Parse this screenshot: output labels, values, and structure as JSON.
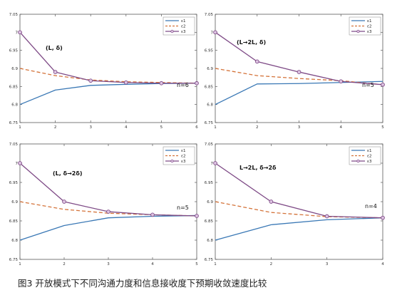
{
  "caption": "图3 开放模式下不同沟通力度和信息接收度下预期收敛速度比较",
  "colors": {
    "e1": "#3a78b5",
    "e2": "#d4733a",
    "e3": "#7e4a86",
    "e3_marker_fill": "#ddc4e2"
  },
  "chart_data": [
    {
      "type": "line",
      "annotation": "(L,  δ)",
      "n_label": "n=6",
      "x": [
        1,
        2,
        3,
        4,
        5,
        6
      ],
      "xticks": [
        "1",
        "2",
        "3",
        "4",
        "5",
        "6"
      ],
      "ylim": [
        6.75,
        7.05
      ],
      "yticks": [
        "6.75",
        "6.8",
        "6.85",
        "6.9",
        "6.95",
        "7",
        "7.05"
      ],
      "legend": "top-right",
      "series": [
        {
          "name": "ε1",
          "values": [
            6.8,
            6.84,
            6.853,
            6.856,
            6.858,
            6.859
          ]
        },
        {
          "name": "ε2",
          "values": [
            6.9,
            6.88,
            6.868,
            6.863,
            6.861,
            6.859
          ]
        },
        {
          "name": "ε3",
          "values": [
            7.0,
            6.89,
            6.866,
            6.861,
            6.859,
            6.859
          ]
        }
      ]
    },
    {
      "type": "line",
      "annotation": "(L→2L,  δ)",
      "n_label": "n=5",
      "x": [
        1,
        2,
        3,
        4,
        5
      ],
      "xticks": [
        "1",
        "2",
        "3",
        "4",
        "5"
      ],
      "ylim": [
        6.75,
        7.05
      ],
      "yticks": [
        "6.75",
        "6.8",
        "6.85",
        "6.9",
        "6.95",
        "7",
        "7.05"
      ],
      "legend": "top-right",
      "series": [
        {
          "name": "ε1",
          "values": [
            6.8,
            6.857,
            6.858,
            6.861,
            6.864
          ]
        },
        {
          "name": "ε2",
          "values": [
            6.9,
            6.88,
            6.872,
            6.866,
            6.855
          ]
        },
        {
          "name": "ε3",
          "values": [
            7.0,
            6.919,
            6.89,
            6.864,
            6.855
          ]
        }
      ]
    },
    {
      "type": "line",
      "annotation": "(L,  δ→2δ)",
      "n_label": "n=5",
      "x": [
        1,
        2,
        3,
        4,
        5
      ],
      "xticks": [
        "1",
        "2",
        "3",
        "4",
        "5"
      ],
      "ylim": [
        6.75,
        7.05
      ],
      "yticks": [
        "6.75",
        "6.8",
        "6.85",
        "6.9",
        "6.95",
        "7",
        "7.05"
      ],
      "legend": "top-right",
      "series": [
        {
          "name": "ε1",
          "values": [
            6.8,
            6.838,
            6.858,
            6.862,
            6.864
          ]
        },
        {
          "name": "ε2",
          "values": [
            6.9,
            6.88,
            6.87,
            6.866,
            6.863
          ]
        },
        {
          "name": "ε3",
          "values": [
            7.0,
            6.9,
            6.874,
            6.866,
            6.863
          ]
        }
      ]
    },
    {
      "type": "line",
      "annotation": "L→2L,  δ→2δ",
      "n_label": "n=4",
      "x": [
        1,
        2,
        3,
        4
      ],
      "xticks": [
        "1",
        "2",
        "3",
        "4"
      ],
      "ylim": [
        6.75,
        7.05
      ],
      "yticks": [
        "6.75",
        "6.8",
        "6.85",
        "6.9",
        "6.95",
        "7",
        "7.05"
      ],
      "legend": "top-right",
      "series": [
        {
          "name": "ε1",
          "values": [
            6.8,
            6.84,
            6.853,
            6.858
          ]
        },
        {
          "name": "ε2",
          "values": [
            6.9,
            6.872,
            6.861,
            6.858
          ]
        },
        {
          "name": "ε3",
          "values": [
            7.0,
            6.9,
            6.862,
            6.858
          ]
        }
      ]
    }
  ]
}
